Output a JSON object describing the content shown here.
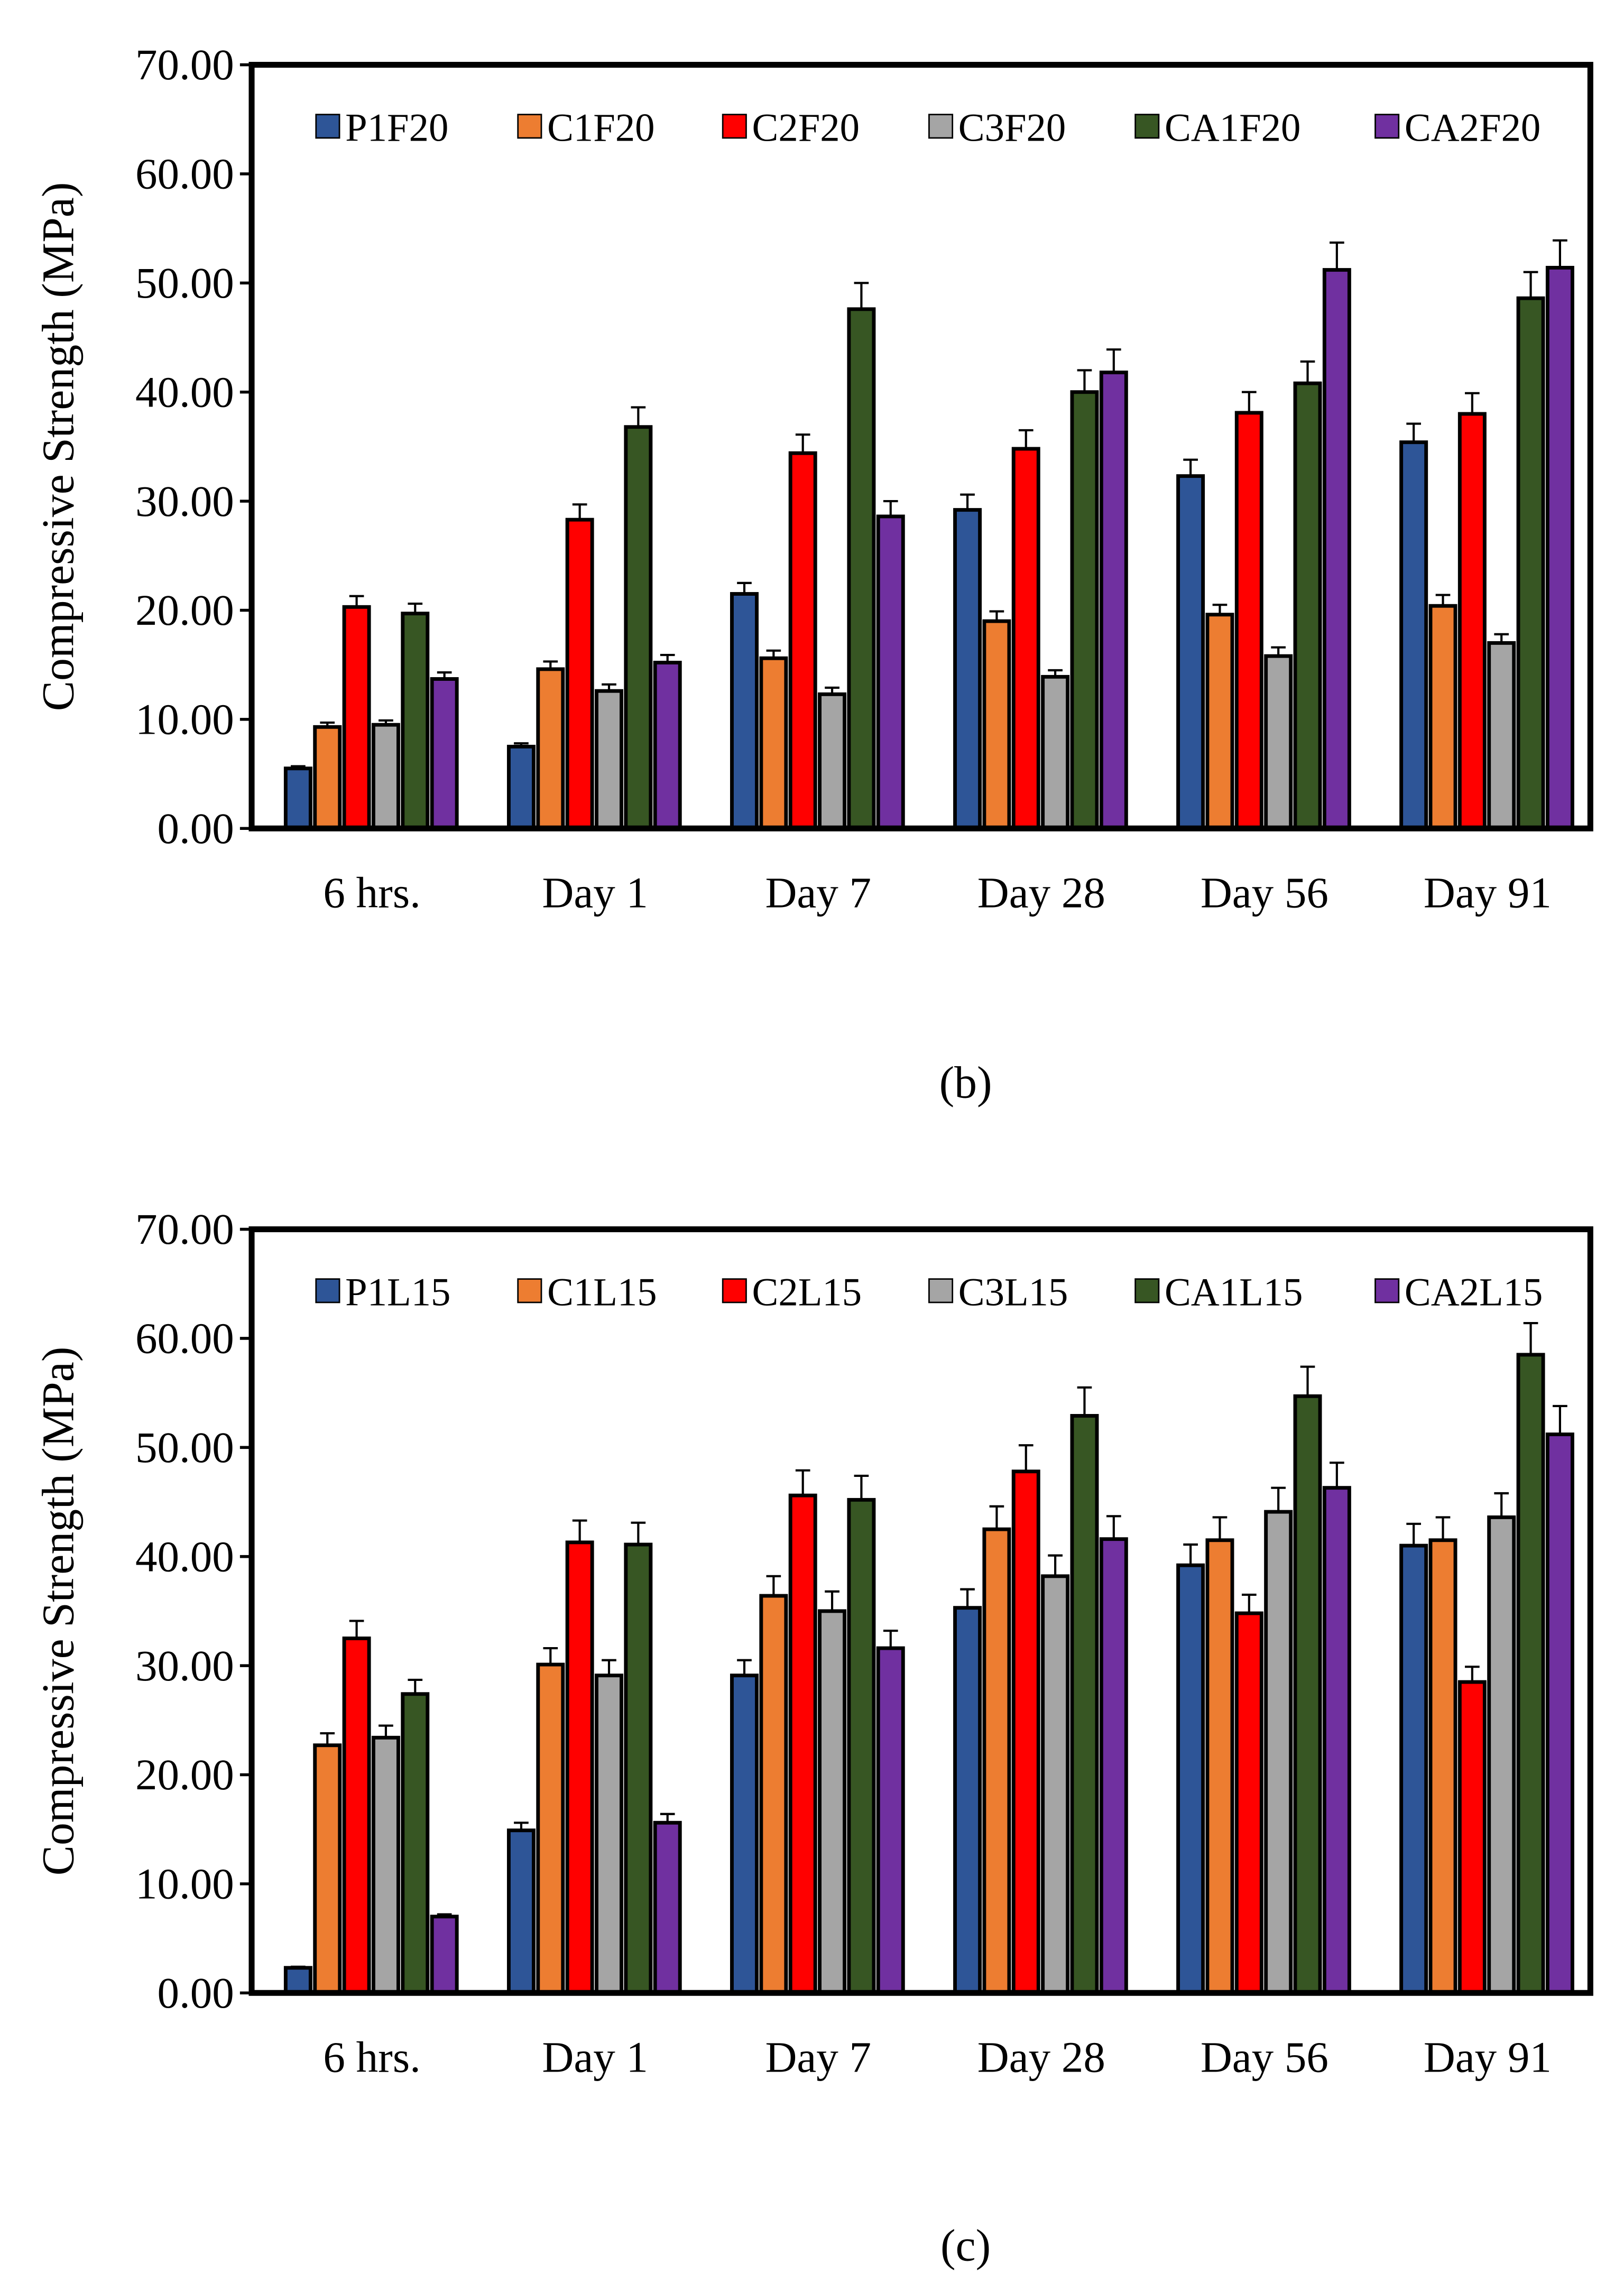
{
  "chart_data": [
    {
      "type": "bar",
      "caption": "(b)",
      "ylabel": "Compressive Strength (MPa)",
      "xlabel": "",
      "ylim": [
        0,
        70
      ],
      "yticks": [
        "0.00",
        "10.00",
        "20.00",
        "30.00",
        "40.00",
        "50.00",
        "60.00",
        "70.00"
      ],
      "legend_position": "top",
      "categories": [
        "6 hrs.",
        "Day 1",
        "Day 7",
        "Day 28",
        "Day 56",
        "Day 91"
      ],
      "series": [
        {
          "name": "P1F20",
          "color": "#2E5597",
          "values": [
            5.5,
            7.5,
            21.5,
            29.2,
            32.3,
            35.4
          ],
          "errors": [
            0.2,
            0.3,
            1.0,
            1.4,
            1.5,
            1.7
          ]
        },
        {
          "name": "C1F20",
          "color": "#ED7D31",
          "values": [
            9.3,
            14.6,
            15.6,
            19.0,
            19.6,
            20.4
          ],
          "errors": [
            0.4,
            0.7,
            0.7,
            0.9,
            0.9,
            1.0
          ]
        },
        {
          "name": "C2F20",
          "color": "#FF0000",
          "values": [
            20.3,
            28.3,
            34.4,
            34.8,
            38.1,
            38.0
          ],
          "errors": [
            1.0,
            1.4,
            1.7,
            1.7,
            1.9,
            1.9
          ]
        },
        {
          "name": "C3F20",
          "color": "#A5A5A5",
          "values": [
            9.5,
            12.6,
            12.3,
            13.9,
            15.8,
            17.0
          ],
          "errors": [
            0.4,
            0.6,
            0.6,
            0.6,
            0.8,
            0.8
          ]
        },
        {
          "name": "CA1F20",
          "color": "#375623",
          "values": [
            19.7,
            36.8,
            47.6,
            40.0,
            40.8,
            48.6
          ],
          "errors": [
            0.9,
            1.8,
            2.4,
            2.0,
            2.0,
            2.4
          ]
        },
        {
          "name": "CA2F20",
          "color": "#7030A0",
          "values": [
            13.7,
            15.2,
            28.6,
            41.8,
            51.2,
            51.4
          ],
          "errors": [
            0.6,
            0.7,
            1.4,
            2.1,
            2.5,
            2.5
          ]
        }
      ]
    },
    {
      "type": "bar",
      "caption": "(c)",
      "ylabel": "Compressive Strength (MPa)",
      "xlabel": "",
      "ylim": [
        0,
        70
      ],
      "yticks": [
        "0.00",
        "10.00",
        "20.00",
        "30.00",
        "40.00",
        "50.00",
        "60.00",
        "70.00"
      ],
      "legend_position": "top",
      "categories": [
        "6 hrs.",
        "Day 1",
        "Day 7",
        "Day 28",
        "Day 56",
        "Day 91"
      ],
      "series": [
        {
          "name": "P1L15",
          "color": "#2E5597",
          "values": [
            2.3,
            14.9,
            29.1,
            35.3,
            39.2,
            41.0
          ],
          "errors": [
            0.1,
            0.7,
            1.4,
            1.7,
            1.9,
            2.0
          ]
        },
        {
          "name": "C1L15",
          "color": "#ED7D31",
          "values": [
            22.7,
            30.1,
            36.4,
            42.5,
            41.5,
            41.5
          ],
          "errors": [
            1.1,
            1.5,
            1.8,
            2.1,
            2.1,
            2.1
          ]
        },
        {
          "name": "C2L15",
          "color": "#FF0000",
          "values": [
            32.5,
            41.3,
            45.6,
            47.8,
            34.8,
            28.5
          ],
          "errors": [
            1.6,
            2.0,
            2.3,
            2.4,
            1.7,
            1.4
          ]
        },
        {
          "name": "C3L15",
          "color": "#A5A5A5",
          "values": [
            23.4,
            29.1,
            35.0,
            38.2,
            44.1,
            43.6
          ],
          "errors": [
            1.1,
            1.4,
            1.8,
            1.9,
            2.2,
            2.2
          ]
        },
        {
          "name": "CA1L15",
          "color": "#375623",
          "values": [
            27.4,
            41.1,
            45.2,
            52.9,
            54.7,
            58.5
          ],
          "errors": [
            1.3,
            2.0,
            2.2,
            2.6,
            2.7,
            2.9
          ]
        },
        {
          "name": "CA2L15",
          "color": "#7030A0",
          "values": [
            7.0,
            15.6,
            31.6,
            41.6,
            46.3,
            51.2
          ],
          "errors": [
            0.2,
            0.8,
            1.6,
            2.1,
            2.3,
            2.6
          ]
        }
      ]
    }
  ]
}
